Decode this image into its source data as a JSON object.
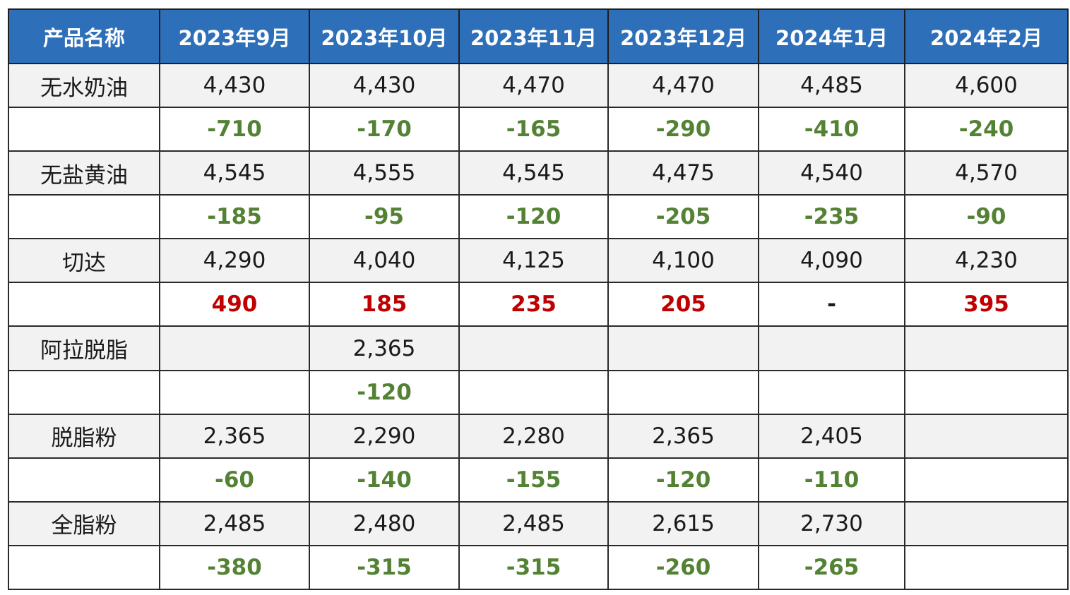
{
  "table": {
    "header": [
      "产品名称",
      "2023年9月",
      "2023年10月",
      "2023年11月",
      "2023年12月",
      "2024年1月",
      "2024年2月"
    ],
    "rows": [
      [
        "无水奶油",
        "4,430",
        "4,430",
        "4,470",
        "4,470",
        "4,485",
        "4,600"
      ],
      [
        null,
        "-710",
        "-170",
        "-165",
        "-290",
        "-410",
        "-240"
      ],
      [
        "无盐黄油",
        "4,545",
        "4,555",
        "4,545",
        "4,475",
        "4,540",
        "4,570"
      ],
      [
        null,
        "-185",
        "-95",
        "-120",
        "-205",
        "-235",
        "-90"
      ],
      [
        "切达",
        "4,290",
        "4,040",
        "4,125",
        "4,100",
        "4,090",
        "4,230"
      ],
      [
        null,
        "490",
        "185",
        "235",
        "205",
        "-",
        "395"
      ],
      [
        "阿拉脱脂",
        null,
        "2,365",
        null,
        null,
        null,
        null
      ],
      [
        null,
        null,
        "-120",
        null,
        null,
        null,
        null
      ],
      [
        "脱脂粉",
        "2,365",
        "2,290",
        "2,280",
        "2,365",
        "2,405",
        null
      ],
      [
        null,
        "-60",
        "-140",
        "-155",
        "-120",
        "-110",
        null
      ],
      [
        "全脂粉",
        "2,485",
        "2,480",
        "2,485",
        "2,615",
        "2,730",
        null
      ],
      [
        null,
        "-380",
        "-315",
        "-315",
        "-260",
        "-265",
        null
      ]
    ]
  }
}
